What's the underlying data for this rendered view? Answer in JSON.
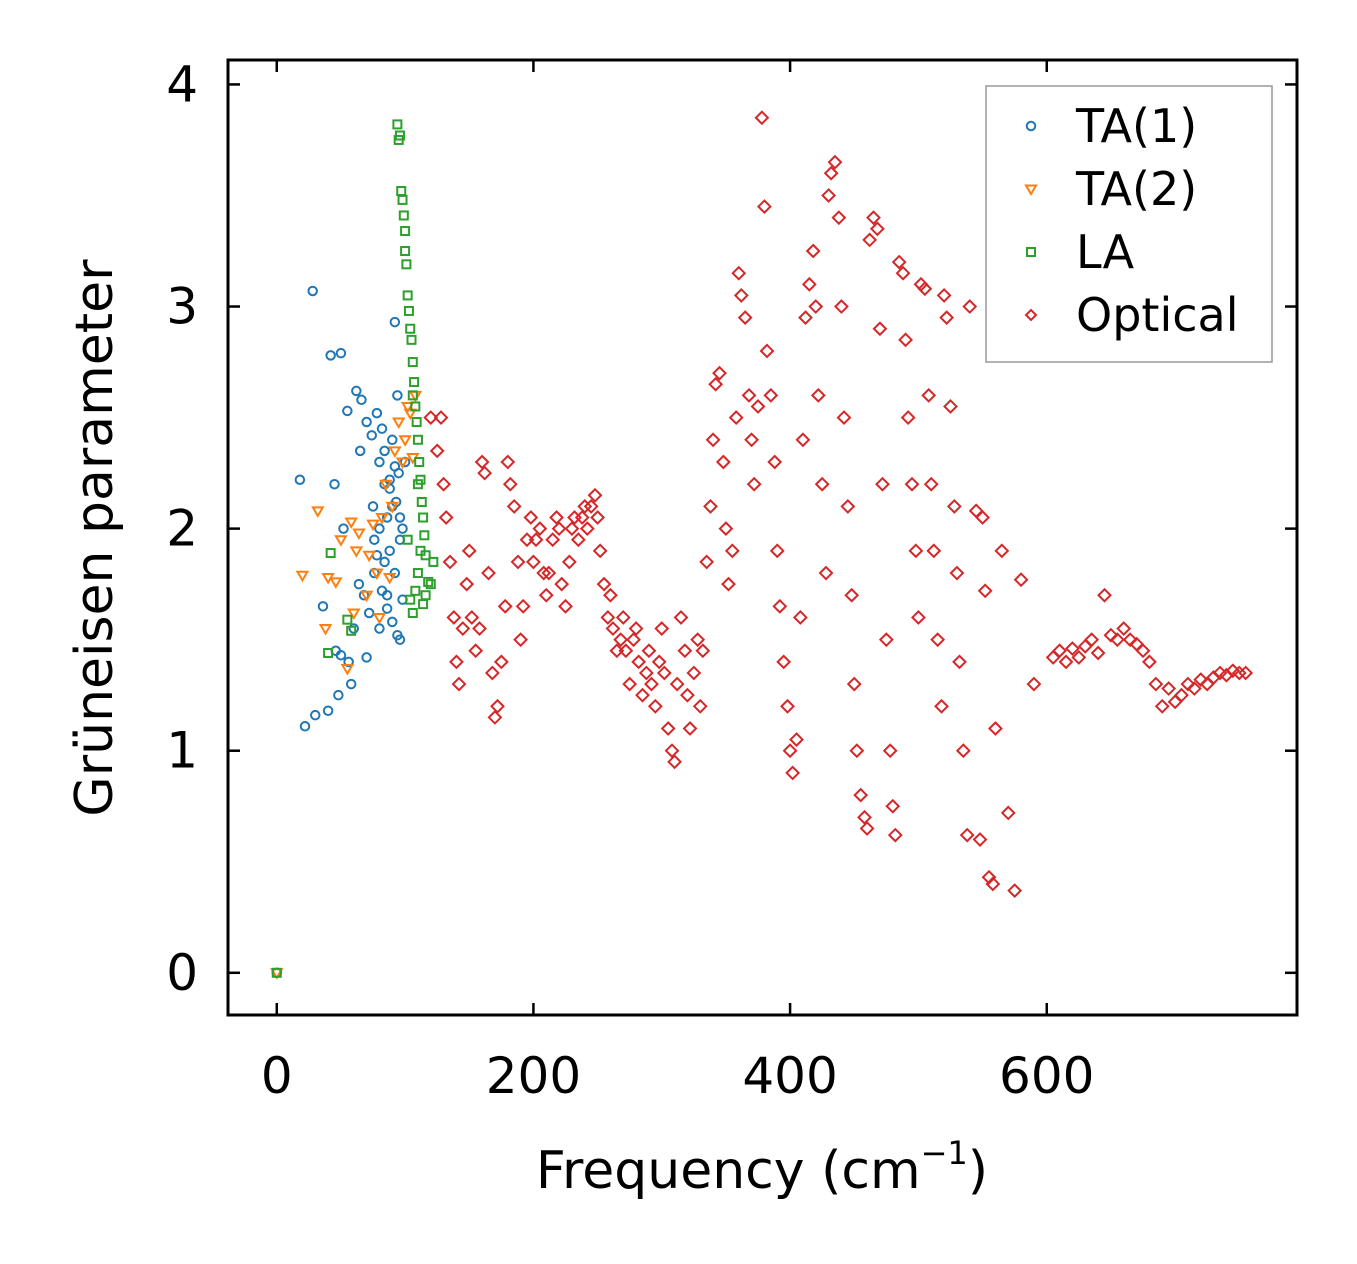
{
  "chart_data": {
    "type": "scatter",
    "title": "",
    "xlabel": "Frequency (cm",
    "xlabel_sup": "−1",
    "xlabel_close": ")",
    "ylabel": "Grüneisen parameter",
    "xlim": [
      -38,
      795
    ],
    "ylim": [
      -0.19,
      4.11
    ],
    "xticks": [
      0,
      200,
      400,
      600
    ],
    "xtick_labels": [
      "0",
      "200",
      "400",
      "600"
    ],
    "yticks": [
      0,
      1,
      2,
      3,
      4
    ],
    "ytick_labels": [
      "0",
      "1",
      "2",
      "3",
      "4"
    ],
    "legend_position": "top-right",
    "series": [
      {
        "name": "TA(1)",
        "marker": "circle",
        "color": "#1f77b4",
        "x": [
          0,
          18,
          22,
          28,
          30,
          36,
          40,
          42,
          45,
          46,
          48,
          50,
          50,
          52,
          55,
          56,
          58,
          60,
          62,
          64,
          65,
          66,
          68,
          70,
          70,
          72,
          74,
          75,
          76,
          78,
          80,
          80,
          82,
          84,
          86,
          86,
          88,
          90,
          90,
          92,
          92,
          94,
          95,
          96,
          98,
          100,
          84,
          88,
          93,
          96,
          78,
          82,
          86,
          90,
          94,
          98,
          76,
          80,
          84,
          88,
          92,
          96
        ],
        "y": [
          0,
          2.22,
          1.11,
          3.07,
          1.16,
          1.65,
          1.18,
          2.78,
          2.2,
          1.45,
          1.25,
          2.79,
          1.43,
          2.0,
          2.53,
          1.4,
          1.3,
          1.55,
          2.62,
          1.75,
          2.35,
          2.58,
          1.7,
          2.48,
          1.42,
          1.62,
          2.42,
          2.1,
          1.8,
          2.52,
          1.55,
          2.3,
          2.45,
          2.2,
          2.05,
          1.7,
          1.9,
          2.4,
          2.1,
          2.93,
          1.8,
          2.6,
          2.25,
          1.5,
          2.0,
          2.3,
          2.35,
          2.18,
          2.12,
          1.95,
          1.88,
          1.72,
          1.64,
          1.58,
          1.52,
          1.68,
          1.95,
          2.0,
          1.85,
          2.22,
          2.28,
          2.05
        ]
      },
      {
        "name": "TA(2)",
        "marker": "triangle-down",
        "color": "#ff7f0e",
        "x": [
          0,
          20,
          32,
          40,
          38,
          46,
          50,
          55,
          58,
          60,
          62,
          64,
          70,
          72,
          75,
          78,
          80,
          82,
          85,
          88,
          90,
          92,
          95,
          98,
          100,
          102,
          104,
          106,
          108
        ],
        "y": [
          0,
          1.79,
          2.08,
          1.78,
          1.55,
          1.76,
          1.95,
          1.37,
          2.03,
          1.62,
          1.9,
          1.98,
          1.7,
          1.88,
          2.02,
          1.8,
          1.6,
          2.05,
          2.2,
          1.78,
          2.1,
          2.35,
          2.48,
          2.3,
          2.4,
          2.55,
          2.52,
          2.32,
          2.6
        ]
      },
      {
        "name": "LA",
        "marker": "square",
        "color": "#2ca02c",
        "x": [
          0,
          40,
          42,
          55,
          58,
          94,
          95,
          96,
          97,
          98,
          99,
          100,
          100,
          101,
          102,
          103,
          104,
          105,
          106,
          107,
          108,
          109,
          110,
          111,
          112,
          113,
          114,
          115,
          116,
          118,
          104,
          106,
          108,
          110,
          112,
          114,
          116,
          120,
          122,
          102,
          106,
          110
        ],
        "y": [
          0,
          1.44,
          1.89,
          1.59,
          1.54,
          3.82,
          3.75,
          3.77,
          3.52,
          3.48,
          3.41,
          3.34,
          3.25,
          3.19,
          3.05,
          2.98,
          2.9,
          2.85,
          2.75,
          2.66,
          2.55,
          2.48,
          2.4,
          2.3,
          2.22,
          2.12,
          2.05,
          1.97,
          1.88,
          1.76,
          1.68,
          1.62,
          1.72,
          1.8,
          1.9,
          1.66,
          1.7,
          1.75,
          1.85,
          1.95,
          2.6,
          2.2
        ]
      },
      {
        "name": "Optical",
        "marker": "diamond",
        "color": "#d62728",
        "points": [
          [
            120,
            2.5
          ],
          [
            125,
            2.35
          ],
          [
            128,
            2.5
          ],
          [
            130,
            2.2
          ],
          [
            132,
            2.05
          ],
          [
            135,
            1.85
          ],
          [
            138,
            1.6
          ],
          [
            140,
            1.4
          ],
          [
            142,
            1.3
          ],
          [
            145,
            1.55
          ],
          [
            148,
            1.75
          ],
          [
            150,
            1.9
          ],
          [
            152,
            1.6
          ],
          [
            155,
            1.45
          ],
          [
            158,
            1.55
          ],
          [
            160,
            2.3
          ],
          [
            162,
            2.25
          ],
          [
            165,
            1.8
          ],
          [
            168,
            1.35
          ],
          [
            170,
            1.15
          ],
          [
            172,
            1.2
          ],
          [
            175,
            1.4
          ],
          [
            178,
            1.65
          ],
          [
            180,
            2.3
          ],
          [
            182,
            2.2
          ],
          [
            185,
            2.1
          ],
          [
            188,
            1.85
          ],
          [
            190,
            1.5
          ],
          [
            192,
            1.65
          ],
          [
            195,
            1.95
          ],
          [
            198,
            2.05
          ],
          [
            200,
            1.85
          ],
          [
            202,
            1.95
          ],
          [
            205,
            2.0
          ],
          [
            208,
            1.8
          ],
          [
            210,
            1.7
          ],
          [
            212,
            1.8
          ],
          [
            215,
            1.95
          ],
          [
            218,
            2.05
          ],
          [
            220,
            2.0
          ],
          [
            222,
            1.75
          ],
          [
            225,
            1.65
          ],
          [
            228,
            1.85
          ],
          [
            230,
            2.0
          ],
          [
            232,
            2.05
          ],
          [
            235,
            1.95
          ],
          [
            238,
            2.05
          ],
          [
            240,
            2.1
          ],
          [
            242,
            2.0
          ],
          [
            245,
            2.1
          ],
          [
            248,
            2.15
          ],
          [
            250,
            2.05
          ],
          [
            252,
            1.9
          ],
          [
            255,
            1.75
          ],
          [
            258,
            1.6
          ],
          [
            260,
            1.7
          ],
          [
            262,
            1.55
          ],
          [
            265,
            1.45
          ],
          [
            268,
            1.5
          ],
          [
            270,
            1.6
          ],
          [
            272,
            1.45
          ],
          [
            275,
            1.3
          ],
          [
            278,
            1.5
          ],
          [
            280,
            1.55
          ],
          [
            282,
            1.4
          ],
          [
            285,
            1.25
          ],
          [
            288,
            1.35
          ],
          [
            290,
            1.45
          ],
          [
            292,
            1.3
          ],
          [
            295,
            1.2
          ],
          [
            298,
            1.4
          ],
          [
            300,
            1.55
          ],
          [
            302,
            1.35
          ],
          [
            305,
            1.1
          ],
          [
            308,
            1.0
          ],
          [
            310,
            0.95
          ],
          [
            312,
            1.3
          ],
          [
            315,
            1.6
          ],
          [
            318,
            1.45
          ],
          [
            320,
            1.25
          ],
          [
            322,
            1.1
          ],
          [
            325,
            1.35
          ],
          [
            328,
            1.5
          ],
          [
            330,
            1.2
          ],
          [
            332,
            1.45
          ],
          [
            335,
            1.85
          ],
          [
            338,
            2.1
          ],
          [
            340,
            2.4
          ],
          [
            342,
            2.65
          ],
          [
            345,
            2.7
          ],
          [
            348,
            2.3
          ],
          [
            350,
            2.0
          ],
          [
            352,
            1.75
          ],
          [
            355,
            1.9
          ],
          [
            358,
            2.5
          ],
          [
            360,
            3.15
          ],
          [
            362,
            3.05
          ],
          [
            365,
            2.95
          ],
          [
            368,
            2.6
          ],
          [
            370,
            2.4
          ],
          [
            372,
            2.2
          ],
          [
            375,
            2.55
          ],
          [
            378,
            3.85
          ],
          [
            380,
            3.45
          ],
          [
            382,
            2.8
          ],
          [
            385,
            2.6
          ],
          [
            388,
            2.3
          ],
          [
            390,
            1.9
          ],
          [
            392,
            1.65
          ],
          [
            395,
            1.4
          ],
          [
            398,
            1.2
          ],
          [
            400,
            1.0
          ],
          [
            402,
            0.9
          ],
          [
            405,
            1.05
          ],
          [
            408,
            1.6
          ],
          [
            410,
            2.4
          ],
          [
            412,
            2.95
          ],
          [
            415,
            3.1
          ],
          [
            418,
            3.25
          ],
          [
            420,
            3.0
          ],
          [
            422,
            2.6
          ],
          [
            425,
            2.2
          ],
          [
            428,
            1.8
          ],
          [
            430,
            3.5
          ],
          [
            432,
            3.6
          ],
          [
            435,
            3.65
          ],
          [
            438,
            3.4
          ],
          [
            440,
            3.0
          ],
          [
            442,
            2.5
          ],
          [
            445,
            2.1
          ],
          [
            448,
            1.7
          ],
          [
            450,
            1.3
          ],
          [
            452,
            1.0
          ],
          [
            455,
            0.8
          ],
          [
            458,
            0.7
          ],
          [
            460,
            0.65
          ],
          [
            462,
            3.3
          ],
          [
            465,
            3.4
          ],
          [
            468,
            3.35
          ],
          [
            470,
            2.9
          ],
          [
            472,
            2.2
          ],
          [
            475,
            1.5
          ],
          [
            478,
            1.0
          ],
          [
            480,
            0.75
          ],
          [
            482,
            0.62
          ],
          [
            485,
            3.2
          ],
          [
            488,
            3.15
          ],
          [
            490,
            2.85
          ],
          [
            492,
            2.5
          ],
          [
            495,
            2.2
          ],
          [
            498,
            1.9
          ],
          [
            500,
            1.6
          ],
          [
            502,
            3.1
          ],
          [
            505,
            3.08
          ],
          [
            508,
            2.6
          ],
          [
            510,
            2.2
          ],
          [
            512,
            1.9
          ],
          [
            515,
            1.5
          ],
          [
            518,
            1.2
          ],
          [
            520,
            3.05
          ],
          [
            522,
            2.95
          ],
          [
            525,
            2.55
          ],
          [
            528,
            2.1
          ],
          [
            530,
            1.8
          ],
          [
            532,
            1.4
          ],
          [
            535,
            1.0
          ],
          [
            538,
            0.62
          ],
          [
            540,
            3.0
          ],
          [
            545,
            2.08
          ],
          [
            548,
            0.6
          ],
          [
            550,
            2.05
          ],
          [
            552,
            1.72
          ],
          [
            555,
            0.43
          ],
          [
            558,
            0.4
          ],
          [
            560,
            1.1
          ],
          [
            565,
            1.9
          ],
          [
            570,
            0.72
          ],
          [
            575,
            0.37
          ],
          [
            580,
            1.77
          ],
          [
            590,
            1.3
          ],
          [
            605,
            1.42
          ],
          [
            610,
            1.45
          ],
          [
            615,
            1.4
          ],
          [
            620,
            1.46
          ],
          [
            625,
            1.42
          ],
          [
            630,
            1.47
          ],
          [
            635,
            1.5
          ],
          [
            640,
            1.44
          ],
          [
            645,
            1.7
          ],
          [
            650,
            1.52
          ],
          [
            655,
            1.5
          ],
          [
            660,
            1.55
          ],
          [
            665,
            1.5
          ],
          [
            670,
            1.48
          ],
          [
            675,
            1.45
          ],
          [
            680,
            1.4
          ],
          [
            685,
            1.3
          ],
          [
            690,
            1.2
          ],
          [
            695,
            1.28
          ],
          [
            700,
            1.22
          ],
          [
            705,
            1.25
          ],
          [
            710,
            1.3
          ],
          [
            715,
            1.28
          ],
          [
            720,
            1.32
          ],
          [
            725,
            1.3
          ],
          [
            730,
            1.33
          ],
          [
            735,
            1.35
          ],
          [
            740,
            1.34
          ],
          [
            745,
            1.36
          ],
          [
            750,
            1.35
          ],
          [
            755,
            1.35
          ]
        ]
      }
    ]
  }
}
